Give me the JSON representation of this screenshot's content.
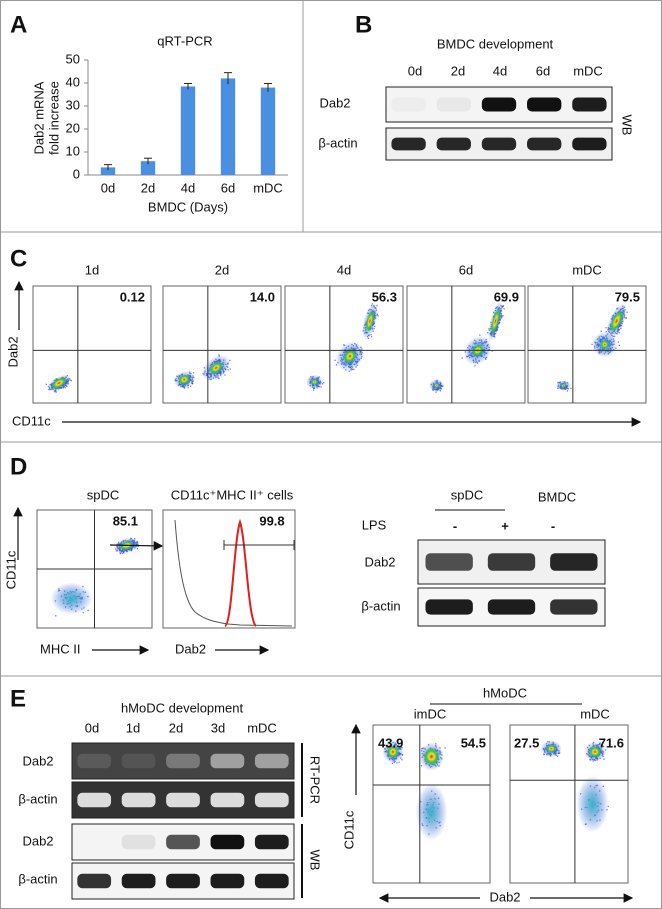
{
  "chart_data": {
    "type": "bar",
    "title": "qRT-PCR",
    "y_label": [
      "Dab2 mRNA",
      "fold increase"
    ],
    "x_label": "BMDC (Days)",
    "categories": [
      "0d",
      "2d",
      "4d",
      "6d",
      "mDC"
    ],
    "values": [
      3.3,
      6,
      38.5,
      42,
      38
    ],
    "errors": [
      1.2,
      1.3,
      1.3,
      2.5,
      1.8
    ],
    "color": "#4a8fe0",
    "ylim": [
      0,
      50
    ],
    "yticks": [
      0,
      10,
      20,
      30,
      40,
      50
    ]
  },
  "panel_labels": [
    "A",
    "B",
    "C",
    "D",
    "E"
  ],
  "panel_b": {
    "title": "BMDC development",
    "lanes": [
      "0d",
      "2d",
      "4d",
      "6d",
      "mDC"
    ],
    "rows": [
      "Dab2",
      "β-actin"
    ],
    "method": "WB"
  },
  "panel_c": {
    "timepoints": [
      "1d",
      "2d",
      "4d",
      "6d",
      "mDC"
    ],
    "percentages": [
      "0.12",
      "14.0",
      "56.3",
      "69.9",
      "79.5"
    ],
    "y_axis": "Dab2",
    "x_axis": "CD11c"
  },
  "panel_d": {
    "scatter_title": "spDC",
    "scatter_percentage": "85.1",
    "scatter_y_axis": "CD11c",
    "scatter_x_axis": "MHC II",
    "histogram_title": "CD11c⁺MHC II⁺ cells",
    "histogram_percentage": "99.8",
    "histogram_x_axis": "Dab2",
    "blot_groups": [
      "spDC",
      "BMDC"
    ],
    "treatment_label": "LPS",
    "treatments": [
      "-",
      "+",
      "-"
    ],
    "rows": [
      "Dab2",
      "β-actin"
    ]
  },
  "panel_e": {
    "title": "hMoDC development",
    "lanes": [
      "0d",
      "1d",
      "2d",
      "3d",
      "mDC"
    ],
    "rows": [
      "Dab2",
      "β-actin",
      "Dab2",
      "β-actin"
    ],
    "methods": [
      "RT-PCR",
      "WB"
    ],
    "flow_group": "hMoDC",
    "flow_titles": [
      "imDC",
      "mDC"
    ],
    "percentages": [
      [
        "43.9",
        "54.5"
      ],
      [
        "27.5",
        "71.6"
      ]
    ],
    "y_axis": "CD11c",
    "x_axis": "Dab2"
  }
}
